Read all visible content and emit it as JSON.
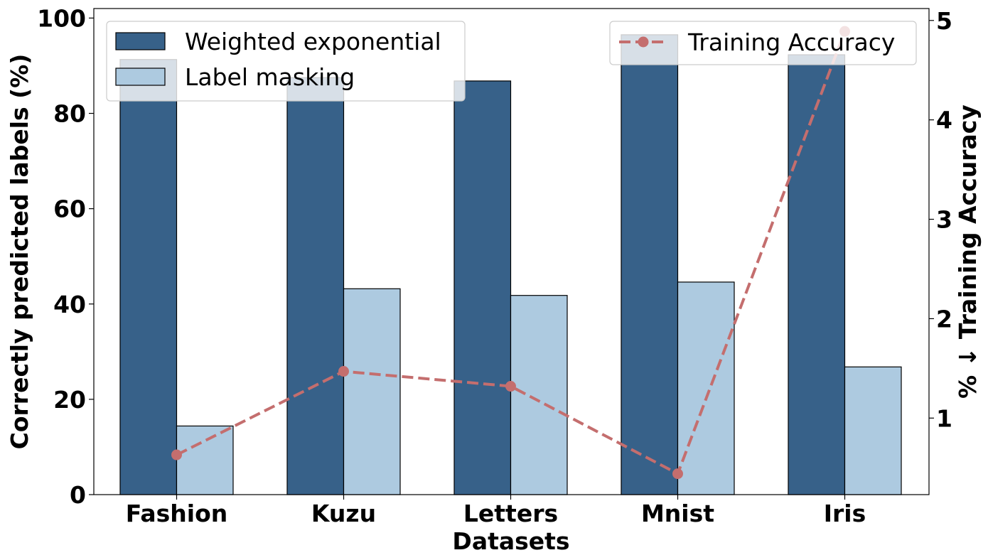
{
  "chart_data": {
    "type": "bar",
    "categories": [
      "Fashion",
      "Kuzu",
      "Letters",
      "Mnist",
      "Iris"
    ],
    "xlabel": "Datasets",
    "ylabel": "Correctly predicted labels (%)",
    "y2label": "% ↓ Training Accuracy",
    "ylim": [
      0,
      102
    ],
    "y2lim": [
      0.23,
      5.12
    ],
    "yticks": [
      0,
      20,
      40,
      60,
      80,
      100
    ],
    "y2ticks": [
      1,
      2,
      3,
      4,
      5
    ],
    "grid": false,
    "series": [
      {
        "name": "Weighted exponential",
        "axis": "left",
        "kind": "bar",
        "color": "#376189",
        "values": [
          91.3,
          87.5,
          86.8,
          96.5,
          92.3
        ]
      },
      {
        "name": "Label masking",
        "axis": "left",
        "kind": "bar",
        "color": "#adcae0",
        "values": [
          14.4,
          43.2,
          41.8,
          44.6,
          26.8
        ]
      },
      {
        "name": "Training Accuracy",
        "axis": "right",
        "kind": "line",
        "style": "dashed",
        "marker": "circle",
        "color": "#c46e6e",
        "values": [
          0.63,
          1.47,
          1.32,
          0.44,
          4.89
        ]
      }
    ],
    "legend": [
      {
        "placement": "upper-left",
        "entries": [
          "Weighted exponential",
          "Label masking"
        ]
      },
      {
        "placement": "upper-right",
        "entries": [
          "Training Accuracy"
        ]
      }
    ]
  }
}
